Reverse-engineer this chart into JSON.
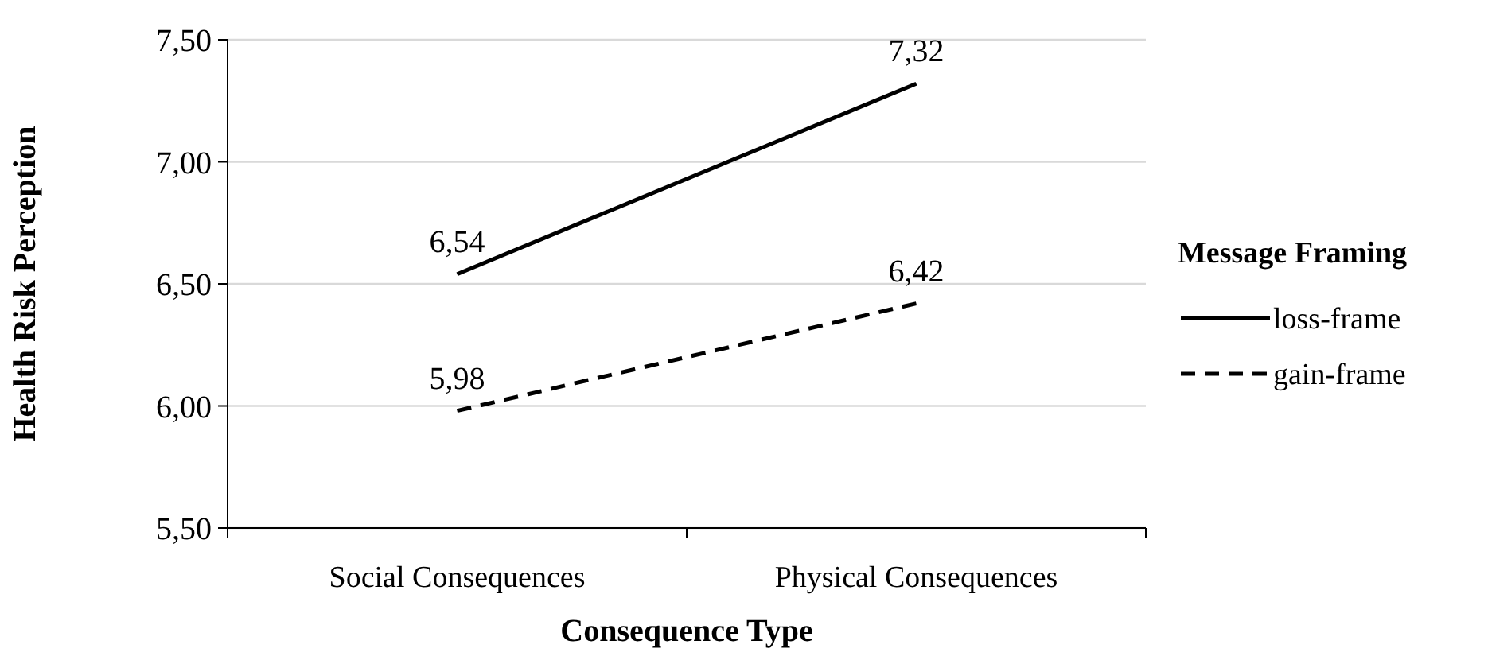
{
  "chart_data": {
    "type": "line",
    "xlabel": "Consequence Type",
    "ylabel": "Health Risk Perception",
    "legend_title": "Message Framing",
    "categories": [
      "Social Consequences",
      "Physical Consequences"
    ],
    "series": [
      {
        "name": "loss-frame",
        "color": "#000000",
        "values": [
          6.54,
          7.32
        ],
        "value_labels": [
          "6,54",
          "7,32"
        ],
        "line_style": "solid"
      },
      {
        "name": "gain-frame",
        "color": "#000000",
        "values": [
          5.98,
          6.42
        ],
        "value_labels": [
          "5,98",
          "6,42"
        ],
        "line_style": "dashed"
      }
    ],
    "ylim": [
      5.5,
      7.5
    ],
    "yticks": [
      {
        "value": 5.5,
        "label": "5,50"
      },
      {
        "value": 6,
        "label": "6,00"
      },
      {
        "value": 6.5,
        "label": "6,50"
      },
      {
        "value": 7,
        "label": "7,00"
      },
      {
        "value": 7.5,
        "label": "7,50"
      }
    ],
    "grid": "y",
    "legend": "right",
    "marker": "none"
  }
}
